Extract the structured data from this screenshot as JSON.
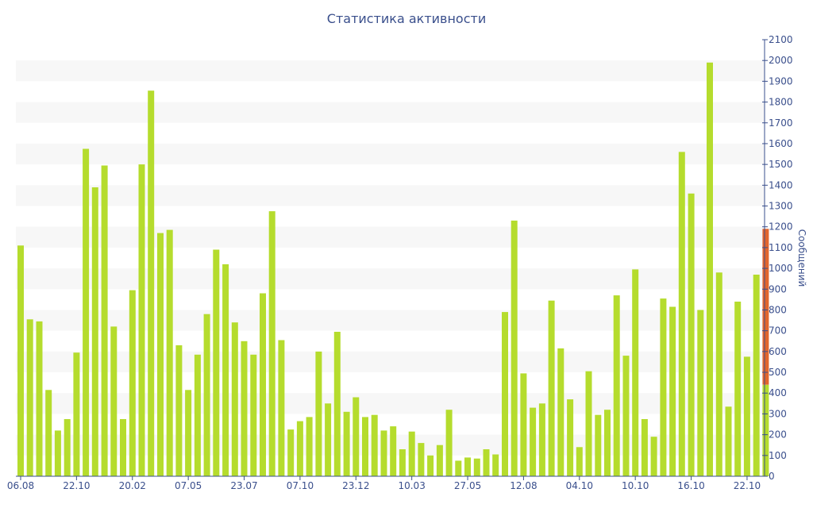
{
  "chart_data": {
    "type": "bar",
    "title": "Статистика активности",
    "ylabel": "Сообщений",
    "ylim": [
      0,
      2100
    ],
    "y_ticks": [
      0,
      100,
      200,
      300,
      400,
      500,
      600,
      700,
      800,
      900,
      1000,
      1100,
      1200,
      1300,
      1400,
      1500,
      1600,
      1700,
      1800,
      1900,
      2000,
      2100
    ],
    "x_tick_labels": [
      {
        "index": 0,
        "label": "06.08"
      },
      {
        "index": 6,
        "label": "22.10"
      },
      {
        "index": 12,
        "label": "20.02"
      },
      {
        "index": 18,
        "label": "07.05"
      },
      {
        "index": 24,
        "label": "23.07"
      },
      {
        "index": 30,
        "label": "07.10"
      },
      {
        "index": 36,
        "label": "23.12"
      },
      {
        "index": 42,
        "label": "10.03"
      },
      {
        "index": 48,
        "label": "27.05"
      },
      {
        "index": 54,
        "label": "12.08"
      },
      {
        "index": 60,
        "label": "04.10"
      },
      {
        "index": 66,
        "label": "10.10"
      },
      {
        "index": 72,
        "label": "16.10"
      },
      {
        "index": 78,
        "label": "22.10"
      }
    ],
    "values": [
      1110,
      755,
      745,
      415,
      220,
      275,
      595,
      1575,
      1390,
      1495,
      720,
      275,
      895,
      1500,
      1855,
      1170,
      1185,
      630,
      415,
      585,
      780,
      1090,
      1020,
      740,
      650,
      585,
      880,
      1275,
      655,
      225,
      265,
      285,
      600,
      350,
      695,
      310,
      380,
      285,
      295,
      220,
      240,
      130,
      215,
      160,
      100,
      150,
      320,
      75,
      90,
      85,
      130,
      105,
      790,
      1230,
      495,
      330,
      350,
      845,
      615,
      370,
      140,
      505,
      295,
      320,
      870,
      580,
      995,
      275,
      190,
      855,
      815,
      1560,
      1360,
      800,
      1990,
      980,
      335,
      840,
      575,
      970,
      440
    ],
    "highlight": {
      "index": 80,
      "overlay_value": 1190,
      "overlay_color": "#e2652d"
    },
    "colors": {
      "bar": "#b5dc2d",
      "text": "#3a4f8c",
      "axis": "#3a4f8c",
      "band": "#f7f7f7"
    },
    "grid": "alternating-bands",
    "legend": "none"
  }
}
